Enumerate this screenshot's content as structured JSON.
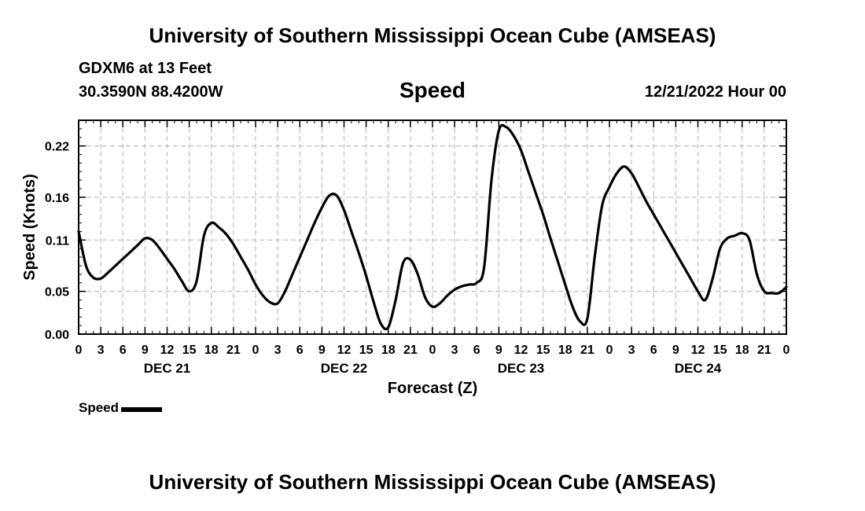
{
  "header": {
    "title": "University of Southern Mississippi Ocean Cube (AMSEAS)",
    "station": "GDXM6 at 13 Feet",
    "coords": "30.3590N  88.4200W",
    "variable": "Speed",
    "datetime": "12/21/2022 Hour 00"
  },
  "footer": {
    "title": "University of Southern Mississippi Ocean Cube (AMSEAS)"
  },
  "legend": {
    "label": "Speed"
  },
  "chart_data": {
    "type": "line",
    "title": "Speed",
    "xlabel": "Forecast (Z)",
    "ylabel": "Speed (Knots)",
    "xlim": [
      0,
      96
    ],
    "ylim": [
      0,
      0.25
    ],
    "yticks": [
      0.0,
      0.05,
      0.11,
      0.16,
      0.22
    ],
    "ytick_labels": [
      "0.00",
      "0.05",
      "0.11",
      "0.16",
      "0.22"
    ],
    "xtick_hours": [
      0,
      3,
      6,
      9,
      12,
      15,
      18,
      21,
      24,
      27,
      30,
      33,
      36,
      39,
      42,
      45,
      48,
      51,
      54,
      57,
      60,
      63,
      66,
      69,
      72,
      75,
      78,
      81,
      84,
      87,
      90,
      93,
      96
    ],
    "xtick_labels": [
      "0",
      "3",
      "6",
      "9",
      "12",
      "15",
      "18",
      "21",
      "0",
      "3",
      "6",
      "9",
      "12",
      "15",
      "18",
      "21",
      "0",
      "3",
      "6",
      "9",
      "12",
      "15",
      "18",
      "21",
      "0",
      "3",
      "6",
      "9",
      "12",
      "15",
      "18",
      "21",
      "0"
    ],
    "day_labels": [
      {
        "label": "DEC 21",
        "hour": 12
      },
      {
        "label": "DEC 22",
        "hour": 36
      },
      {
        "label": "DEC 23",
        "hour": 60
      },
      {
        "label": "DEC 24",
        "hour": 84
      }
    ],
    "grid": true,
    "series": [
      {
        "name": "Speed",
        "color": "#000000",
        "x": [
          0,
          1,
          2,
          3,
          4,
          5,
          6,
          7,
          8,
          9,
          10,
          11,
          12,
          13,
          14,
          15,
          16,
          17,
          18,
          19,
          20,
          21,
          22,
          23,
          24,
          25,
          26,
          27,
          28,
          29,
          30,
          31,
          32,
          33,
          34,
          35,
          36,
          37,
          38,
          39,
          40,
          41,
          42,
          43,
          44,
          45,
          46,
          47,
          48,
          49,
          50,
          51,
          52,
          53,
          54,
          55,
          56,
          57,
          58,
          59,
          60,
          61,
          62,
          63,
          64,
          65,
          66,
          67,
          68,
          69,
          70,
          71,
          72,
          73,
          74,
          75,
          76,
          77,
          78,
          79,
          80,
          81,
          82,
          83,
          84,
          85,
          86,
          87,
          88,
          89,
          90,
          91,
          92,
          93,
          94,
          95,
          96
        ],
        "y": [
          0.12,
          0.08,
          0.066,
          0.065,
          0.072,
          0.08,
          0.088,
          0.096,
          0.104,
          0.112,
          0.11,
          0.1,
          0.088,
          0.076,
          0.062,
          0.05,
          0.062,
          0.115,
          0.13,
          0.125,
          0.117,
          0.105,
          0.09,
          0.075,
          0.058,
          0.045,
          0.037,
          0.036,
          0.05,
          0.07,
          0.09,
          0.11,
          0.13,
          0.148,
          0.162,
          0.162,
          0.145,
          0.12,
          0.095,
          0.068,
          0.038,
          0.012,
          0.008,
          0.04,
          0.083,
          0.087,
          0.07,
          0.043,
          0.032,
          0.036,
          0.045,
          0.052,
          0.056,
          0.058,
          0.06,
          0.078,
          0.18,
          0.238,
          0.242,
          0.232,
          0.215,
          0.19,
          0.165,
          0.14,
          0.112,
          0.085,
          0.058,
          0.032,
          0.015,
          0.018,
          0.09,
          0.15,
          0.172,
          0.188,
          0.196,
          0.188,
          0.172,
          0.155,
          0.14,
          0.125,
          0.11,
          0.095,
          0.08,
          0.065,
          0.05,
          0.04,
          0.065,
          0.1,
          0.112,
          0.115,
          0.118,
          0.11,
          0.07,
          0.05,
          0.048,
          0.048,
          0.055
        ]
      }
    ]
  }
}
